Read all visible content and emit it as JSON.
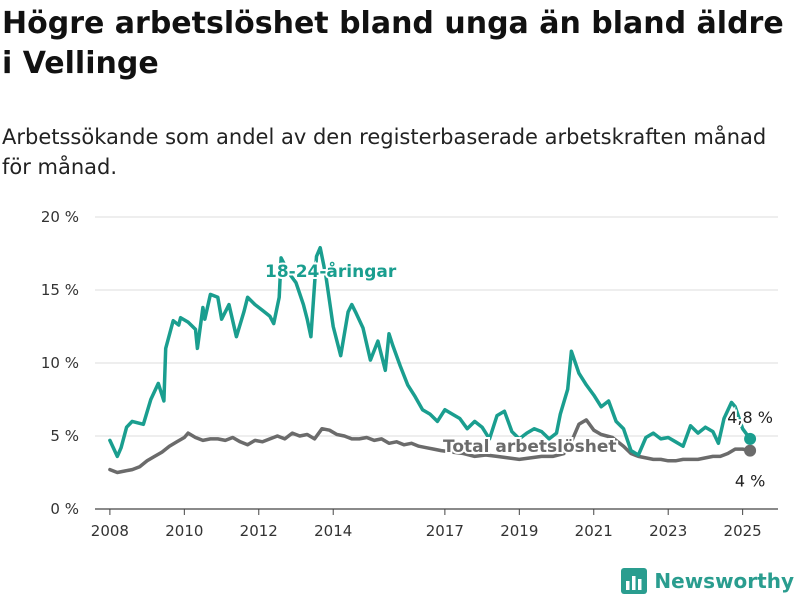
{
  "header": {
    "title": "Högre arbetslöshet bland unga än bland äldre i Vellinge",
    "subtitle": "Arbetssökande som andel av den registerbaserade arbetskraften månad för månad."
  },
  "brand": {
    "name": "Newsworthy",
    "icon": "bar-chart-logo-icon",
    "color": "#2a9d8f"
  },
  "chart_data": {
    "type": "line",
    "title": "",
    "xlabel": "",
    "ylabel": "",
    "ylim": [
      0,
      20
    ],
    "y_ticks": [
      {
        "value": 0,
        "label": "0 %"
      },
      {
        "value": 5,
        "label": "5 %"
      },
      {
        "value": 10,
        "label": "10 %"
      },
      {
        "value": 15,
        "label": "15 %"
      },
      {
        "value": 20,
        "label": "20 %"
      }
    ],
    "x_ticks": [
      {
        "value": 2008,
        "label": "2008"
      },
      {
        "value": 2010,
        "label": "2010"
      },
      {
        "value": 2012,
        "label": "2012"
      },
      {
        "value": 2014,
        "label": "2014"
      },
      {
        "value": 2017,
        "label": "2017"
      },
      {
        "value": 2019,
        "label": "2019"
      },
      {
        "value": 2021,
        "label": "2021"
      },
      {
        "value": 2023,
        "label": "2023"
      },
      {
        "value": 2025,
        "label": "2025"
      }
    ],
    "grid": true,
    "legend": "inline",
    "series": [
      {
        "name": "18-24-åringar",
        "color": "#1a9e8f",
        "end_label": "4,8 %",
        "x": [
          2008.0,
          2008.2,
          2008.3,
          2008.45,
          2008.6,
          2008.9,
          2009.1,
          2009.3,
          2009.45,
          2009.5,
          2009.7,
          2009.85,
          2009.9,
          2010.1,
          2010.3,
          2010.35,
          2010.5,
          2010.55,
          2010.7,
          2010.9,
          2011.0,
          2011.2,
          2011.4,
          2011.6,
          2011.7,
          2011.9,
          2012.1,
          2012.3,
          2012.4,
          2012.55,
          2012.6,
          2012.8,
          2013.0,
          2013.2,
          2013.3,
          2013.4,
          2013.55,
          2013.65,
          2013.8,
          2014.0,
          2014.2,
          2014.4,
          2014.5,
          2014.6,
          2014.8,
          2015.0,
          2015.2,
          2015.4,
          2015.5,
          2015.6,
          2015.8,
          2016.0,
          2016.2,
          2016.4,
          2016.6,
          2016.8,
          2017.0,
          2017.2,
          2017.4,
          2017.6,
          2017.8,
          2018.0,
          2018.2,
          2018.4,
          2018.6,
          2018.8,
          2019.0,
          2019.2,
          2019.4,
          2019.6,
          2019.8,
          2020.0,
          2020.1,
          2020.3,
          2020.4,
          2020.6,
          2020.8,
          2021.0,
          2021.2,
          2021.4,
          2021.6,
          2021.8,
          2022.0,
          2022.2,
          2022.4,
          2022.6,
          2022.8,
          2023.0,
          2023.2,
          2023.4,
          2023.6,
          2023.8,
          2024.0,
          2024.2,
          2024.35,
          2024.5,
          2024.7,
          2024.8,
          2025.0,
          2025.2
        ],
        "y": [
          4.7,
          3.6,
          4.2,
          5.6,
          6.0,
          5.8,
          7.5,
          8.6,
          7.4,
          11.0,
          12.9,
          12.6,
          13.1,
          12.8,
          12.3,
          11.0,
          13.8,
          13.0,
          14.7,
          14.5,
          13.0,
          14.0,
          11.8,
          13.5,
          14.5,
          14.0,
          13.6,
          13.2,
          12.7,
          14.5,
          17.2,
          16.2,
          15.5,
          14.0,
          13.0,
          11.8,
          17.3,
          17.9,
          16.0,
          12.5,
          10.5,
          13.5,
          14.0,
          13.5,
          12.4,
          10.2,
          11.5,
          9.5,
          12.0,
          11.2,
          9.8,
          8.5,
          7.7,
          6.8,
          6.5,
          6.0,
          6.8,
          6.5,
          6.2,
          5.5,
          6.0,
          5.6,
          4.8,
          6.4,
          6.7,
          5.3,
          4.8,
          5.2,
          5.5,
          5.3,
          4.8,
          5.2,
          6.5,
          8.2,
          10.8,
          9.3,
          8.5,
          7.8,
          7.0,
          7.4,
          6.0,
          5.5,
          4.0,
          3.7,
          4.9,
          5.2,
          4.8,
          4.9,
          4.6,
          4.3,
          5.7,
          5.2,
          5.6,
          5.3,
          4.5,
          6.2,
          7.3,
          7.0,
          5.5,
          4.8
        ]
      },
      {
        "name": "Total arbetslöshet",
        "color": "#6b6b6b",
        "end_label": "4 %",
        "x": [
          2008.0,
          2008.2,
          2008.4,
          2008.6,
          2008.8,
          2009.0,
          2009.2,
          2009.4,
          2009.6,
          2009.8,
          2010.0,
          2010.1,
          2010.3,
          2010.5,
          2010.7,
          2010.9,
          2011.1,
          2011.3,
          2011.5,
          2011.7,
          2011.9,
          2012.1,
          2012.3,
          2012.5,
          2012.7,
          2012.9,
          2013.1,
          2013.3,
          2013.5,
          2013.7,
          2013.9,
          2014.1,
          2014.3,
          2014.5,
          2014.7,
          2014.9,
          2015.1,
          2015.3,
          2015.5,
          2015.7,
          2015.9,
          2016.1,
          2016.3,
          2016.5,
          2016.7,
          2016.9,
          2017.2,
          2017.5,
          2017.8,
          2018.1,
          2018.4,
          2018.7,
          2019.0,
          2019.3,
          2019.6,
          2019.9,
          2020.2,
          2020.4,
          2020.6,
          2020.8,
          2021.0,
          2021.2,
          2021.5,
          2021.8,
          2022.0,
          2022.2,
          2022.4,
          2022.6,
          2022.8,
          2023.0,
          2023.2,
          2023.4,
          2023.6,
          2023.8,
          2024.0,
          2024.2,
          2024.4,
          2024.6,
          2024.8,
          2025.0,
          2025.2
        ],
        "y": [
          2.7,
          2.5,
          2.6,
          2.7,
          2.9,
          3.3,
          3.6,
          3.9,
          4.3,
          4.6,
          4.9,
          5.2,
          4.9,
          4.7,
          4.8,
          4.8,
          4.7,
          4.9,
          4.6,
          4.4,
          4.7,
          4.6,
          4.8,
          5.0,
          4.8,
          5.2,
          5.0,
          5.1,
          4.8,
          5.5,
          5.4,
          5.1,
          5.0,
          4.8,
          4.8,
          4.9,
          4.7,
          4.8,
          4.5,
          4.6,
          4.4,
          4.5,
          4.3,
          4.2,
          4.1,
          4.0,
          3.9,
          3.8,
          3.6,
          3.7,
          3.6,
          3.5,
          3.4,
          3.5,
          3.6,
          3.6,
          3.8,
          4.6,
          5.8,
          6.1,
          5.4,
          5.1,
          4.9,
          4.3,
          3.8,
          3.6,
          3.5,
          3.4,
          3.4,
          3.3,
          3.3,
          3.4,
          3.4,
          3.4,
          3.5,
          3.6,
          3.6,
          3.8,
          4.1,
          4.1,
          4.0
        ]
      }
    ]
  }
}
